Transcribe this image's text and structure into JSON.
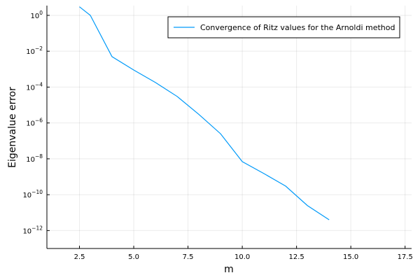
{
  "chart_data": {
    "type": "line",
    "xlabel": "m",
    "ylabel": "Eigenvalue error",
    "y_scale": "log10",
    "xlim": [
      1.0,
      17.8
    ],
    "ylim": [
      1e-13,
      3.5
    ],
    "grid": true,
    "legend_position": "top-right",
    "x_ticks": [
      {
        "value": 2.5,
        "label": "2.5"
      },
      {
        "value": 5.0,
        "label": "5.0"
      },
      {
        "value": 7.5,
        "label": "7.5"
      },
      {
        "value": 10.0,
        "label": "10.0"
      },
      {
        "value": 12.5,
        "label": "12.5"
      },
      {
        "value": 15.0,
        "label": "15.0"
      },
      {
        "value": 17.5,
        "label": "17.5"
      }
    ],
    "y_ticks": [
      {
        "value": 1,
        "base": "10",
        "exp": "0"
      },
      {
        "value": 0.01,
        "base": "10",
        "exp": "−2"
      },
      {
        "value": 0.0001,
        "base": "10",
        "exp": "−4"
      },
      {
        "value": 1e-06,
        "base": "10",
        "exp": "−6"
      },
      {
        "value": 1e-08,
        "base": "10",
        "exp": "−8"
      },
      {
        "value": 1e-10,
        "base": "10",
        "exp": "−10"
      },
      {
        "value": 1e-12,
        "base": "10",
        "exp": "−12"
      }
    ],
    "series": [
      {
        "name": "Convergence of Ritz values for the Arnoldi method",
        "color": "#009af9",
        "points": [
          [
            2.5,
            3.0
          ],
          [
            3,
            1.0
          ],
          [
            4,
            0.005
          ],
          [
            5,
            0.0009
          ],
          [
            6,
            0.00018
          ],
          [
            7,
            3e-05
          ],
          [
            8,
            3e-06
          ],
          [
            9,
            2.5e-07
          ],
          [
            10,
            7e-09
          ],
          [
            11,
            1.5e-09
          ],
          [
            12,
            3e-10
          ],
          [
            13,
            2.5e-11
          ],
          [
            14,
            4e-12
          ]
        ]
      }
    ]
  }
}
